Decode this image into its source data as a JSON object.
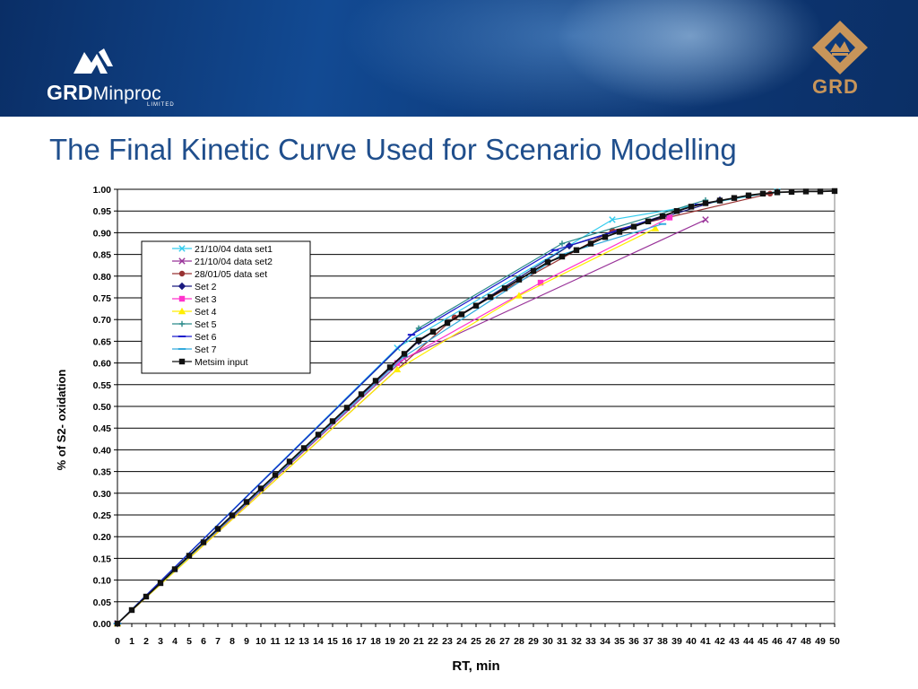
{
  "header": {
    "left_logo_text_bold": "GRD",
    "left_logo_text": "Minproc",
    "left_logo_sub": "LIMITED",
    "right_logo_text": "GRD",
    "colors": {
      "brand_blue": "#0d3a7a",
      "grd_gold": "#c8955a"
    }
  },
  "slide": {
    "title": "The Final Kinetic Curve Used for Scenario Modelling"
  },
  "chart_data": {
    "type": "line",
    "title": "",
    "xlabel": "RT, min",
    "ylabel": "% of S2- oxidation",
    "xlim": [
      0,
      50
    ],
    "ylim": [
      0,
      1
    ],
    "xticks": [
      "0",
      "1",
      "2",
      "3",
      "4",
      "5",
      "6",
      "7",
      "8",
      "9",
      "10",
      "11",
      "12",
      "13",
      "14",
      "15",
      "16",
      "17",
      "18",
      "19",
      "20",
      "21",
      "22",
      "23",
      "24",
      "25",
      "26",
      "27",
      "28",
      "29",
      "30",
      "31",
      "32",
      "33",
      "34",
      "35",
      "36",
      "37",
      "38",
      "39",
      "40",
      "41",
      "42",
      "43",
      "44",
      "45",
      "46",
      "47",
      "48",
      "49",
      "50"
    ],
    "yticks": [
      "0.00",
      "0.05",
      "0.10",
      "0.15",
      "0.20",
      "0.25",
      "0.30",
      "0.35",
      "0.40",
      "0.45",
      "0.50",
      "0.55",
      "0.60",
      "0.65",
      "0.70",
      "0.75",
      "0.80",
      "0.85",
      "0.90",
      "0.95",
      "1.00"
    ],
    "grid": "horizontal",
    "legend_position": "upper-left",
    "series": [
      {
        "name": "21/10/04 data set1",
        "color": "#33ccee",
        "marker": "x",
        "x": [
          0,
          19.5,
          34.5,
          46
        ],
        "y": [
          0,
          0.635,
          0.93,
          0.995
        ]
      },
      {
        "name": "21/10/04 data set2",
        "color": "#993399",
        "marker": "x",
        "x": [
          0,
          20,
          41
        ],
        "y": [
          0,
          0.61,
          0.93
        ]
      },
      {
        "name": "28/01/05 data set",
        "color": "#993333",
        "marker": "circle",
        "x": [
          0,
          23.5,
          34.5,
          45.5
        ],
        "y": [
          0,
          0.705,
          0.905,
          0.99
        ]
      },
      {
        "name": "Set 2",
        "color": "#1a1a80",
        "marker": "diamond",
        "x": [
          0,
          21,
          31.5,
          42
        ],
        "y": [
          0,
          0.65,
          0.87,
          0.975
        ]
      },
      {
        "name": "Set 3",
        "color": "#ff33cc",
        "marker": "square",
        "x": [
          0,
          19.5,
          29.5,
          38.5
        ],
        "y": [
          0,
          0.6,
          0.785,
          0.935
        ]
      },
      {
        "name": "Set 4",
        "color": "#ffee00",
        "marker": "triangle",
        "x": [
          0,
          19.5,
          28,
          37.5
        ],
        "y": [
          0,
          0.585,
          0.755,
          0.91
        ]
      },
      {
        "name": "Set 5",
        "color": "#2a8a8a",
        "marker": "plus",
        "x": [
          0,
          21,
          31,
          41
        ],
        "y": [
          0,
          0.68,
          0.875,
          0.975
        ]
      },
      {
        "name": "Set 6",
        "color": "#1a1acc",
        "marker": "dash",
        "x": [
          0,
          20.5,
          30.5,
          40.5
        ],
        "y": [
          0,
          0.665,
          0.86,
          0.965
        ]
      },
      {
        "name": "Set 7",
        "color": "#33aadd",
        "marker": "dash",
        "x": [
          0,
          20,
          31,
          38
        ],
        "y": [
          0,
          0.615,
          0.85,
          0.92
        ]
      },
      {
        "name": "Metsim input",
        "color": "#111111",
        "marker": "square",
        "x": [
          0,
          1,
          2,
          3,
          4,
          5,
          6,
          7,
          8,
          9,
          10,
          11,
          12,
          13,
          14,
          15,
          16,
          17,
          18,
          19,
          20,
          21,
          22,
          23,
          24,
          25,
          26,
          27,
          28,
          29,
          30,
          31,
          32,
          33,
          34,
          35,
          36,
          37,
          38,
          39,
          40,
          41,
          42,
          43,
          44,
          45,
          46,
          47,
          48,
          49,
          50
        ],
        "y": [
          0,
          0.031,
          0.062,
          0.093,
          0.125,
          0.156,
          0.187,
          0.218,
          0.249,
          0.28,
          0.311,
          0.342,
          0.373,
          0.404,
          0.435,
          0.466,
          0.497,
          0.528,
          0.559,
          0.59,
          0.621,
          0.652,
          0.672,
          0.692,
          0.712,
          0.732,
          0.752,
          0.772,
          0.792,
          0.812,
          0.832,
          0.845,
          0.86,
          0.875,
          0.89,
          0.902,
          0.914,
          0.926,
          0.938,
          0.95,
          0.96,
          0.968,
          0.974,
          0.98,
          0.986,
          0.99,
          0.993,
          0.994,
          0.995,
          0.995,
          0.996
        ]
      }
    ]
  }
}
